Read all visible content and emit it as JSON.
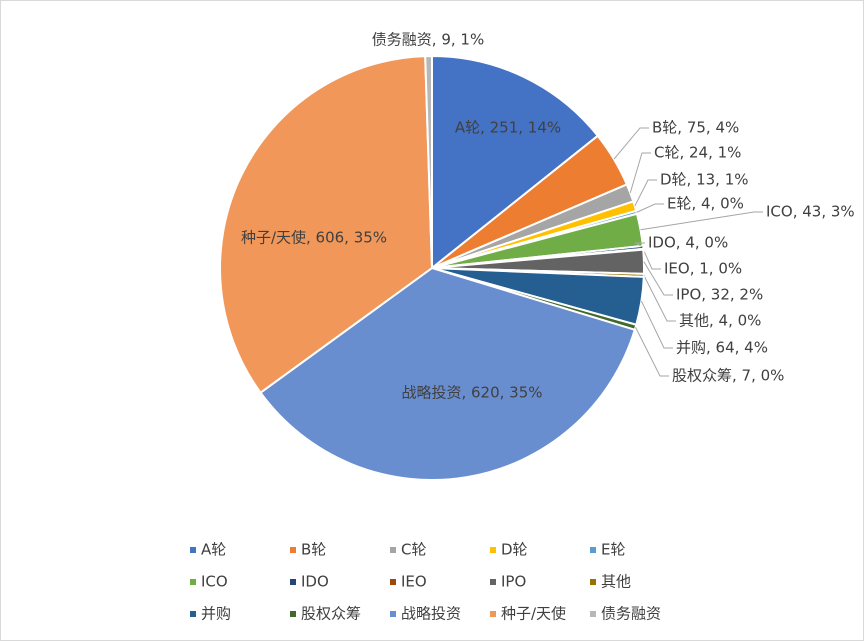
{
  "chart_data": {
    "type": "pie",
    "categories": [
      "A轮",
      "B轮",
      "C轮",
      "D轮",
      "E轮",
      "ICO",
      "IDO",
      "IEO",
      "IPO",
      "其他",
      "并购",
      "股权众筹",
      "战略投资",
      "种子/天使",
      "债务融资"
    ],
    "values": [
      251,
      75,
      24,
      13,
      4,
      43,
      4,
      1,
      32,
      4,
      64,
      7,
      620,
      606,
      9
    ],
    "value_labels": [
      "A轮, 251, 14%",
      "B轮, 75, 4%",
      "C轮, 24, 1%",
      "D轮, 13, 1%",
      "E轮, 4, 0%",
      "ICO, 43, 3%",
      "IDO, 4, 0%",
      "IEO, 1, 0%",
      "IPO, 32, 2%",
      "其他, 4, 0%",
      "并购, 64, 4%",
      "股权众筹, 7, 0%",
      "战略投资, 620, 35%",
      "种子/天使, 606, 35%",
      "债务融资, 9, 1%"
    ],
    "colors": [
      "#4472c4",
      "#ed7d31",
      "#a5a5a5",
      "#ffc000",
      "#5b9bd5",
      "#70ad47",
      "#264478",
      "#9e480e",
      "#636363",
      "#997300",
      "#255e91",
      "#43682b",
      "#698ed0",
      "#f1975a",
      "#b7b7b7"
    ],
    "legend": "bottom"
  }
}
